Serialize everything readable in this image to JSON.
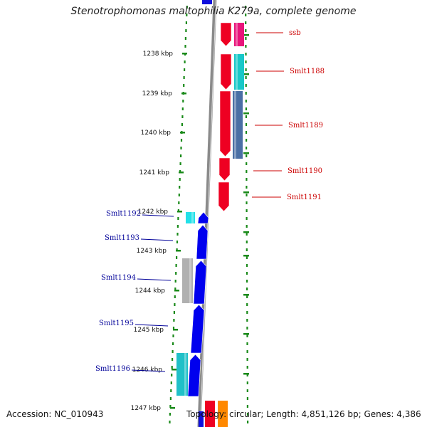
{
  "title": "Stenotrophomonas maltophilia K279a, complete genome",
  "footer": {
    "accession": "Accession: NC_010943",
    "summary": "Topology: circular; Length: 4,851,126 bp; Genes: 4,386"
  },
  "scale_labels": [
    "1238 kbp",
    "1239 kbp",
    "1240 kbp",
    "1241 kbp",
    "1242 kbp",
    "1243 kbp",
    "1244 kbp",
    "1245 kbp",
    "1246 kbp",
    "1247 kbp"
  ],
  "genes_right": [
    {
      "name": "ssb",
      "cds_color": "#ee0022",
      "feature_color": "#e8157a"
    },
    {
      "name": "Smlt1188",
      "cds_color": "#ee0022",
      "feature_color": "#18c8c8"
    },
    {
      "name": "Smlt1189",
      "cds_color": "#ee0022",
      "feature_color": "#4a6fa5"
    },
    {
      "name": "Smlt1190",
      "cds_color": "#ee0022",
      "feature_color": null
    },
    {
      "name": "Smlt1191",
      "cds_color": "#ee0022",
      "feature_color": null
    }
  ],
  "genes_left": [
    {
      "name": "Smlt1192",
      "cds_color": "#0000ee",
      "feature_color": "#22e0e8"
    },
    {
      "name": "Smlt1193",
      "cds_color": "#0000ee",
      "feature_color": null
    },
    {
      "name": "Smlt1194",
      "cds_color": "#0000ee",
      "feature_color": "#b0b0b0"
    },
    {
      "name": "Smlt1195",
      "cds_color": "#0000ee",
      "feature_color": null
    },
    {
      "name": "Smlt1196",
      "cds_color": "#0000ee",
      "feature_color": "#20c0c8"
    }
  ],
  "colors": {
    "right_label": "#cc0000",
    "left_label": "#000099",
    "backbone": "#8a8a8a",
    "dots": "#1a8a1a",
    "partial_orange": "#ff8800"
  }
}
